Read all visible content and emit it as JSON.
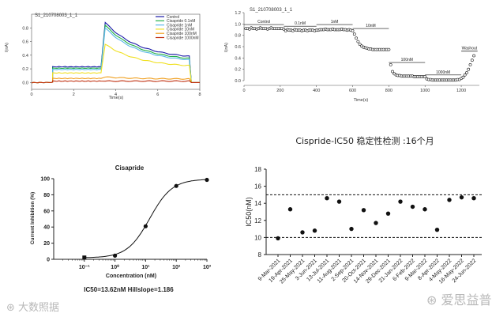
{
  "chart_data": [
    {
      "id": "trace_panel",
      "type": "line",
      "title": "S1_210708003_1_1",
      "xlabel": "Time(s)",
      "ylabel": "I(nA)",
      "xlim": [
        0,
        8
      ],
      "ylim": [
        -0.1,
        1.0
      ],
      "xticks": [
        "0",
        "2",
        "4",
        "6",
        "8"
      ],
      "yticks": [
        "0.0",
        "0.2",
        "0.4",
        "0.6",
        "0.8"
      ],
      "legend": [
        "Control",
        "Cisapride 0.1nM",
        "Cisapride 1nM",
        "Cisapride 10nM",
        "Cisapride 100nM",
        "Cisapride 1000nM"
      ],
      "legend_position": "top-right",
      "series": [
        {
          "name": "Control",
          "color": "#1a1aa8",
          "step": 0.23,
          "peak": 0.88,
          "tail": 0.34
        },
        {
          "name": "Cisapride 0.1nM",
          "color": "#22b04a",
          "step": 0.21,
          "peak": 0.84,
          "tail": 0.31
        },
        {
          "name": "Cisapride 1nM",
          "color": "#5ab8e8",
          "step": 0.19,
          "peak": 0.8,
          "tail": 0.29
        },
        {
          "name": "Cisapride 10nM",
          "color": "#f0e020",
          "step": 0.14,
          "peak": 0.56,
          "tail": 0.22
        },
        {
          "name": "Cisapride 100nM",
          "color": "#f0a020",
          "step": 0.06,
          "peak": 0.08,
          "tail": 0.05
        },
        {
          "name": "Cisapride 1000nM",
          "color": "#c03010",
          "step": 0.02,
          "peak": 0.02,
          "tail": 0.02
        }
      ]
    },
    {
      "id": "timecourse_panel",
      "type": "scatter",
      "title": "S1_210708003_1_1",
      "xlabel": "Time(s)",
      "ylabel": "I(nA)",
      "xlim": [
        0,
        1300
      ],
      "ylim": [
        0,
        1.2
      ],
      "xticks": [
        "0",
        "200",
        "400",
        "600",
        "800",
        "1000",
        "1200"
      ],
      "yticks": [
        "0.0",
        "0.2",
        "0.4",
        "0.6",
        "0.8",
        "1.0",
        "1.2"
      ],
      "annotations": [
        {
          "label": "Control",
          "x_start": 0,
          "x_end": 220,
          "y": 0.99
        },
        {
          "label": "0.1nM",
          "x_start": 220,
          "x_end": 400,
          "y": 0.96
        },
        {
          "label": "1nM",
          "x_start": 400,
          "x_end": 600,
          "y": 0.99
        },
        {
          "label": "10nM",
          "x_start": 600,
          "x_end": 800,
          "y": 0.92
        },
        {
          "label": "100nM",
          "x_start": 800,
          "x_end": 1000,
          "y": 0.32
        },
        {
          "label": "1000nM",
          "x_start": 1000,
          "x_end": 1200,
          "y": 0.1
        },
        {
          "label": "Washout",
          "x_start": 1200,
          "x_end": 1290,
          "y": 0.52
        }
      ],
      "x": [
        10,
        20,
        30,
        40,
        50,
        60,
        70,
        80,
        90,
        100,
        110,
        120,
        130,
        140,
        150,
        160,
        170,
        180,
        190,
        200,
        210,
        220,
        230,
        240,
        250,
        260,
        270,
        280,
        290,
        300,
        310,
        320,
        330,
        340,
        350,
        360,
        370,
        380,
        390,
        400,
        410,
        420,
        430,
        440,
        450,
        460,
        470,
        480,
        490,
        500,
        510,
        520,
        530,
        540,
        550,
        560,
        570,
        580,
        590,
        600,
        610,
        620,
        630,
        640,
        650,
        660,
        670,
        680,
        690,
        700,
        710,
        720,
        730,
        740,
        750,
        760,
        770,
        780,
        790,
        800,
        810,
        820,
        830,
        840,
        850,
        860,
        870,
        880,
        890,
        900,
        910,
        920,
        930,
        940,
        950,
        960,
        970,
        980,
        990,
        1000,
        1010,
        1020,
        1030,
        1040,
        1050,
        1060,
        1070,
        1080,
        1090,
        1100,
        1110,
        1120,
        1130,
        1140,
        1150,
        1160,
        1170,
        1180,
        1190,
        1200,
        1210,
        1220,
        1230,
        1240,
        1250,
        1260,
        1270
      ],
      "y": [
        0.92,
        0.92,
        0.91,
        0.93,
        0.92,
        0.92,
        0.91,
        0.92,
        0.93,
        0.92,
        0.92,
        0.92,
        0.91,
        0.92,
        0.93,
        0.92,
        0.92,
        0.92,
        0.92,
        0.92,
        0.92,
        0.91,
        0.88,
        0.9,
        0.89,
        0.89,
        0.88,
        0.9,
        0.89,
        0.89,
        0.89,
        0.88,
        0.89,
        0.89,
        0.88,
        0.89,
        0.89,
        0.89,
        0.88,
        0.89,
        0.89,
        0.9,
        0.9,
        0.9,
        0.91,
        0.9,
        0.9,
        0.9,
        0.91,
        0.9,
        0.9,
        0.9,
        0.9,
        0.91,
        0.9,
        0.9,
        0.89,
        0.9,
        0.89,
        0.88,
        0.82,
        0.75,
        0.69,
        0.64,
        0.61,
        0.59,
        0.58,
        0.57,
        0.56,
        0.56,
        0.55,
        0.55,
        0.55,
        0.55,
        0.55,
        0.55,
        0.55,
        0.55,
        0.55,
        0.55,
        0.28,
        0.16,
        0.12,
        0.1,
        0.09,
        0.09,
        0.08,
        0.08,
        0.08,
        0.08,
        0.08,
        0.08,
        0.08,
        0.07,
        0.07,
        0.07,
        0.07,
        0.07,
        0.07,
        0.07,
        0.03,
        0.02,
        0.02,
        0.01,
        0.01,
        0.01,
        0.01,
        0.01,
        0.01,
        0.01,
        0.01,
        0.01,
        0.01,
        0.01,
        0.01,
        0.01,
        0.01,
        0.02,
        0.02,
        0.04,
        0.06,
        0.1,
        0.14,
        0.2,
        0.28,
        0.36,
        0.44
      ]
    },
    {
      "id": "dose_response_panel",
      "type": "scatter",
      "title": "Cisapride",
      "xlabel": "Concentration (nM)",
      "ylabel": "Current Inhibition (%)",
      "xscale": "log",
      "xlim": [
        0.01,
        1000
      ],
      "ylim": [
        0,
        100
      ],
      "xticks": [
        "10⁻¹",
        "10⁰",
        "10¹",
        "10²",
        "10³"
      ],
      "yticks": [
        "0",
        "20",
        "40",
        "60",
        "80",
        "100"
      ],
      "x": [
        0.1,
        1,
        10,
        100,
        1000
      ],
      "y": [
        2.2,
        4.5,
        41,
        91,
        98.5
      ],
      "fit": {
        "ic50_nM": 13.62,
        "hillslope": 1.186,
        "bottom": 1.8,
        "top": 99.5
      },
      "caption": "IC50=13.62nM   Hillslope=1.186"
    },
    {
      "id": "ic50_stability_panel",
      "type": "scatter",
      "title": "Cispride-IC50 稳定性检测 :16个月",
      "xlabel": "",
      "ylabel": "IC50(nM)",
      "ylim": [
        8,
        18
      ],
      "yticks": [
        "8",
        "10",
        "12",
        "14",
        "16",
        "18"
      ],
      "categories": [
        "9-Mar-2021",
        "19-Apr-2021",
        "25-May-2021",
        "3-Jun-2021",
        "13-Jul-2021",
        "11-Aug-2021",
        "2-Sep-2021",
        "20-Oct-2021",
        "14-Nov-2021",
        "29-Dec-2021",
        "21-Jan-2022",
        "6-Feb-2022",
        "9-Mar-2022",
        "8-Apr-2022",
        "4-May-2022",
        "16-May-2022",
        "24-Jun-2022"
      ],
      "values": [
        9.9,
        13.3,
        10.6,
        10.8,
        14.6,
        14.2,
        11.0,
        13.2,
        11.7,
        12.8,
        14.2,
        13.6,
        13.3,
        10.9,
        14.4,
        14.7,
        14.6
      ],
      "reference_lines": [
        10,
        15
      ]
    }
  ],
  "watermarks": {
    "left": "大数照据",
    "right": "爱思益普"
  },
  "colors": {
    "axis": "#222222",
    "marker": "#111111",
    "watermark": "#b8b8b8"
  }
}
